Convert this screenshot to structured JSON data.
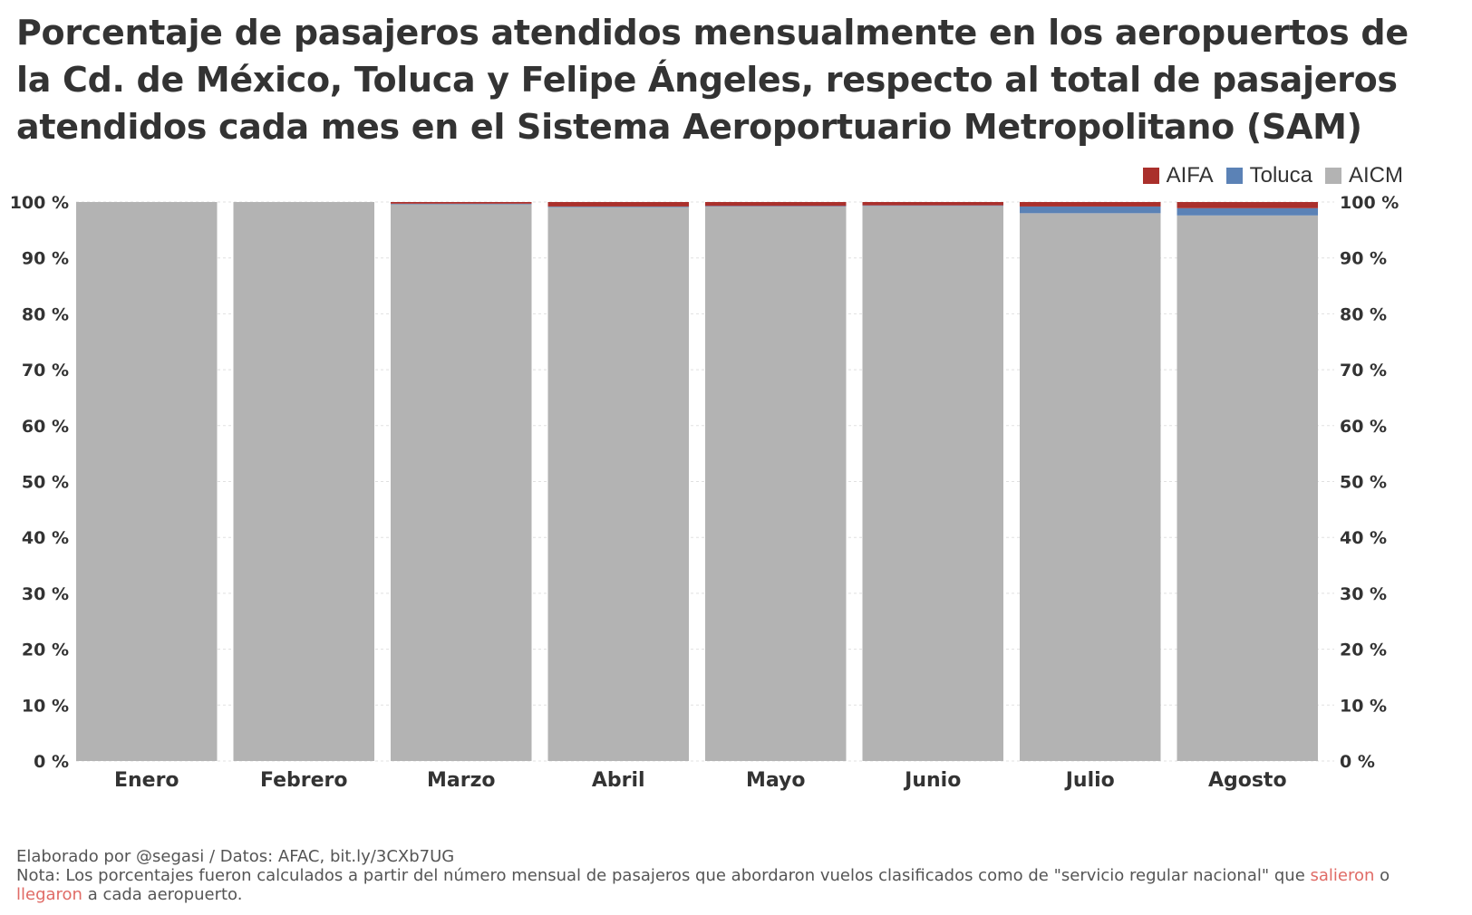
{
  "title": "Porcentaje de pasajeros atendidos mensualmente en los aeropuertos de la Cd. de México, Toluca y Felipe Ángeles, respecto al total de pasajeros atendidos cada mes en el Sistema Aeroportuario Metropolitano (SAM)",
  "colors": {
    "AIFA": "#aa302c",
    "Toluca": "#5b82b6",
    "AICM": "#b3b3b3",
    "grid": "#e0e0e0",
    "highlight": "#e06b66"
  },
  "footer": {
    "credit": "Elaborado por @segasi / Datos: AFAC, bit.ly/3CXb7UG",
    "note_prefix": "Nota: Los porcentajes fueron calculados a partir del número mensual de pasajeros que abordaron vuelos clasificados como de \"servicio regular nacional\" que ",
    "note_link1": "salieron",
    "note_mid": " o ",
    "note_link2": "llegaron",
    "note_suffix": " a cada aeropuerto."
  },
  "chart_data": {
    "type": "bar",
    "stacked": true,
    "categories": [
      "Enero",
      "Febrero",
      "Marzo",
      "Abril",
      "Mayo",
      "Junio",
      "Julio",
      "Agosto"
    ],
    "series": [
      {
        "name": "AICM",
        "values": [
          100,
          100,
          99.6,
          99.1,
          99.2,
          99.3,
          98.0,
          97.6
        ]
      },
      {
        "name": "Toluca",
        "values": [
          0,
          0,
          0.1,
          0.1,
          0.1,
          0.1,
          1.2,
          1.3
        ]
      },
      {
        "name": "AIFA",
        "values": [
          0,
          0,
          0.3,
          0.8,
          0.7,
          0.6,
          0.8,
          1.1
        ]
      }
    ],
    "legend_order": [
      "AIFA",
      "Toluca",
      "AICM"
    ],
    "legend_position": "top-right",
    "ylim": [
      0,
      100
    ],
    "yticks": [
      "0 %",
      "10 %",
      "20 %",
      "30 %",
      "40 %",
      "50 %",
      "60 %",
      "70 %",
      "80 %",
      "90 %",
      "100 %"
    ],
    "grid": true
  }
}
